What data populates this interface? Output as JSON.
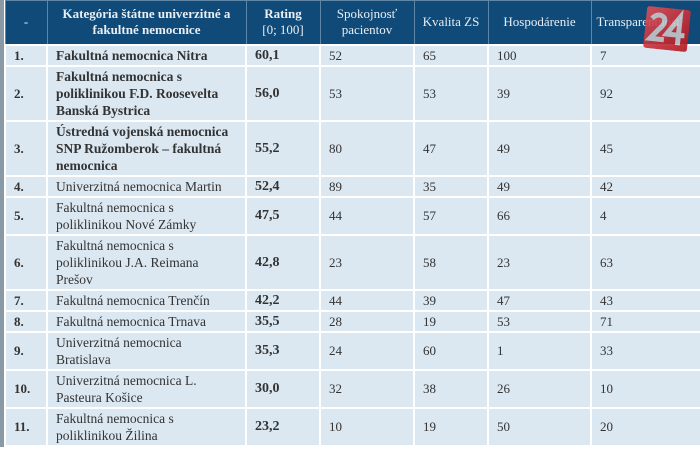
{
  "header": {
    "rank": "-",
    "category": "Kategória štátne univerzitné a fakultné nemocnice",
    "rating": "Rating",
    "rating_scale": "[0; 100]",
    "satisfaction": "Spokojnosť pacientov",
    "quality": "Kvalita ZS",
    "economy": "Hospodárenie",
    "transparency": "Transparentnosť"
  },
  "rows": [
    {
      "rank": "1.",
      "name": "Fakultná nemocnica Nitra",
      "rating": "60,1",
      "satisfaction": "52",
      "quality": "65",
      "economy": "100",
      "transparency": "7",
      "bold": true
    },
    {
      "rank": "2.",
      "name": "Fakultná nemocnica s poliklinikou F.D. Roosevelta Banská Bystrica",
      "rating": "56,0",
      "satisfaction": "53",
      "quality": "53",
      "economy": "39",
      "transparency": "92",
      "bold": true
    },
    {
      "rank": "3.",
      "name": "Ústredná vojenská nemocnica SNP Ružomberok – fakultná nemocnica",
      "rating": "55,2",
      "satisfaction": "80",
      "quality": "47",
      "economy": "49",
      "transparency": "45",
      "bold": true
    },
    {
      "rank": "4.",
      "name": "Univerzitná nemocnica Martin",
      "rating": "52,4",
      "satisfaction": "89",
      "quality": "35",
      "economy": "49",
      "transparency": "42"
    },
    {
      "rank": "5.",
      "name": "Fakultná nemocnica s poliklinikou Nové Zámky",
      "rating": "47,5",
      "satisfaction": "44",
      "quality": "57",
      "economy": "66",
      "transparency": "4"
    },
    {
      "rank": "6.",
      "name": "Fakultná nemocnica s poliklinikou J.A. Reimana Prešov",
      "rating": "42,8",
      "satisfaction": "23",
      "quality": "58",
      "economy": "23",
      "transparency": "63"
    },
    {
      "rank": "7.",
      "name": "Fakultná nemocnica Trenčín",
      "rating": "42,2",
      "satisfaction": "44",
      "quality": "39",
      "economy": "47",
      "transparency": "43"
    },
    {
      "rank": "8.",
      "name": "Fakultná nemocnica Trnava",
      "rating": "35,5",
      "satisfaction": "28",
      "quality": "19",
      "economy": "53",
      "transparency": "71"
    },
    {
      "rank": "9.",
      "name": "Univerzitná nemocnica Bratislava",
      "rating": "35,3",
      "satisfaction": "24",
      "quality": "60",
      "economy": "1",
      "transparency": "33"
    },
    {
      "rank": "10.",
      "name": "Univerzitná nemocnica L. Pasteura Košice",
      "rating": "30,0",
      "satisfaction": "32",
      "quality": "38",
      "economy": "26",
      "transparency": "10"
    },
    {
      "rank": "11.",
      "name": "Fakultná nemocnica s poliklinikou Žilina",
      "rating": "23,2",
      "satisfaction": "10",
      "quality": "19",
      "economy": "50",
      "transparency": "20"
    }
  ],
  "logo": {
    "text": "24"
  },
  "colors": {
    "header": "#0f4a78",
    "row": "#dce8f1"
  }
}
